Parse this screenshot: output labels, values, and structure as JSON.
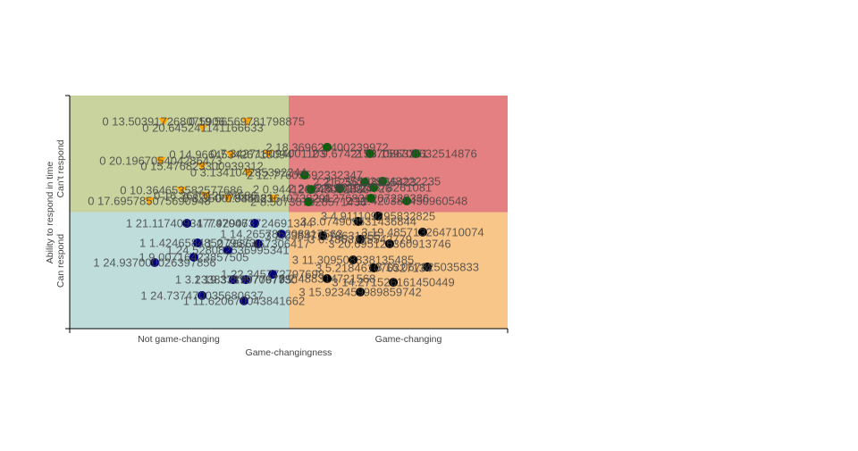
{
  "chart_data": {
    "type": "scatter",
    "xlabel": "Game-changingness",
    "ylabel": "Ability to respond in time",
    "x_tick_labels": [
      "Not game-changing",
      "Game-changing"
    ],
    "y_tick_labels": [
      "Can respond",
      "Can't respond"
    ],
    "xlim": [
      0,
      2
    ],
    "ylim": [
      0,
      2
    ],
    "grid": false,
    "legend": "none",
    "quadrants": {
      "top_left": "#c9d39e",
      "top_right": "#e48081",
      "bottom_left": "#bfdddb",
      "bottom_right": "#f9c68a"
    },
    "series": [
      {
        "color": "#ffa500",
        "marker": "triangle-down",
        "points": [
          {
            "x": 0.429,
            "y": 1.778,
            "label": "0 13.503917268075906"
          },
          {
            "x": 0.808,
            "y": 1.778,
            "label": "0 19.56569781798875"
          },
          {
            "x": 0.608,
            "y": 1.724,
            "label": "0 20.645241141166633"
          },
          {
            "x": 0.735,
            "y": 1.494,
            "label": "0 14.966453426718094"
          },
          {
            "x": 0.906,
            "y": 1.502,
            "label": "0 7.342718094001103"
          },
          {
            "x": 0.416,
            "y": 1.441,
            "label": "0 20.196705404286473"
          },
          {
            "x": 0.604,
            "y": 1.395,
            "label": "0 15.476823300939312"
          },
          {
            "x": 0.816,
            "y": 1.341,
            "label": "0 3.134104285392244"
          },
          {
            "x": 0.51,
            "y": 1.188,
            "label": "0 10.364653582577686"
          },
          {
            "x": 0.62,
            "y": 1.142,
            "label": "0 16.367012577686"
          },
          {
            "x": 0.363,
            "y": 1.096,
            "label": "0 17.695785075690948"
          },
          {
            "x": 0.722,
            "y": 1.119,
            "label": "0 8.35007835083"
          },
          {
            "x": 0.931,
            "y": 1.119,
            "label": "0 0.944121640738291"
          }
        ]
      },
      {
        "color": "#000080",
        "marker": "circle",
        "points": [
          {
            "x": 0.535,
            "y": 0.904,
            "label": "1 21.117409347747046"
          },
          {
            "x": 0.845,
            "y": 0.904,
            "label": "1 7.929073724691344"
          },
          {
            "x": 0.967,
            "y": 0.812,
            "label": "1 14.265785208917563"
          },
          {
            "x": 0.584,
            "y": 0.736,
            "label": "1 1.424658485079673"
          },
          {
            "x": 0.861,
            "y": 0.728,
            "label": "1 2.7686467306417"
          },
          {
            "x": 0.722,
            "y": 0.674,
            "label": "1 24.528082536995341"
          },
          {
            "x": 0.567,
            "y": 0.613,
            "label": "1 9.00716423857505"
          },
          {
            "x": 0.388,
            "y": 0.567,
            "label": "1 24.937000026397856"
          },
          {
            "x": 0.927,
            "y": 0.467,
            "label": "1 22.345772797698"
          },
          {
            "x": 0.747,
            "y": 0.421,
            "label": "1 3.233833199779795"
          },
          {
            "x": 0.804,
            "y": 0.421,
            "label": "1 19.378797067730"
          },
          {
            "x": 0.604,
            "y": 0.284,
            "label": "1 24.737470035680637"
          },
          {
            "x": 0.796,
            "y": 0.238,
            "label": "1 11.620670043841662"
          }
        ]
      },
      {
        "color": "#006400",
        "marker": "circle",
        "points": [
          {
            "x": 1.176,
            "y": 1.556,
            "label": "2 18.369623400239972"
          },
          {
            "x": 1.371,
            "y": 1.502,
            "label": "2 9.674215970863251"
          },
          {
            "x": 1.58,
            "y": 1.502,
            "label": "2 13.159708632514876"
          },
          {
            "x": 1.073,
            "y": 1.318,
            "label": "2 12.77605592332347"
          },
          {
            "x": 1.347,
            "y": 1.257,
            "label": "2 21.256248255423"
          },
          {
            "x": 1.429,
            "y": 1.264,
            "label": "2 6.355529048222235"
          },
          {
            "x": 1.233,
            "y": 1.203,
            "label": "2 24.525582524726"
          },
          {
            "x": 1.102,
            "y": 1.195,
            "label": "2 0.944120248052836"
          },
          {
            "x": 1.388,
            "y": 1.211,
            "label": "2 8.891025578261081"
          },
          {
            "x": 1.376,
            "y": 1.119,
            "label": "2 4.276836207220336"
          },
          {
            "x": 1.09,
            "y": 1.088,
            "label": "2 8.507387328571436"
          },
          {
            "x": 1.539,
            "y": 1.096,
            "label": "2 11.420389450960548"
          }
        ]
      },
      {
        "color": "#000000",
        "marker": "circle",
        "points": [
          {
            "x": 1.408,
            "y": 0.966,
            "label": "3 4.911109295832825"
          },
          {
            "x": 1.318,
            "y": 0.92,
            "label": "3 3.074909531436844"
          },
          {
            "x": 1.612,
            "y": 0.828,
            "label": "3 19.485713264710074"
          },
          {
            "x": 1.155,
            "y": 0.797,
            "label": "3 2.038471178631355"
          },
          {
            "x": 1.327,
            "y": 0.766,
            "label": "3 0.7863125542779"
          },
          {
            "x": 1.461,
            "y": 0.728,
            "label": "3 20.695126360913746"
          },
          {
            "x": 1.294,
            "y": 0.59,
            "label": "3 11.309508838135485"
          },
          {
            "x": 1.388,
            "y": 0.521,
            "label": "3 5.218461076327134"
          },
          {
            "x": 1.633,
            "y": 0.529,
            "label": "3 16.067825035833"
          },
          {
            "x": 1.176,
            "y": 0.429,
            "label": "3 2.488314721568"
          },
          {
            "x": 1.478,
            "y": 0.398,
            "label": "3 14.271526161450449"
          },
          {
            "x": 1.327,
            "y": 0.314,
            "label": "3 15.923459989859742"
          }
        ]
      }
    ]
  }
}
